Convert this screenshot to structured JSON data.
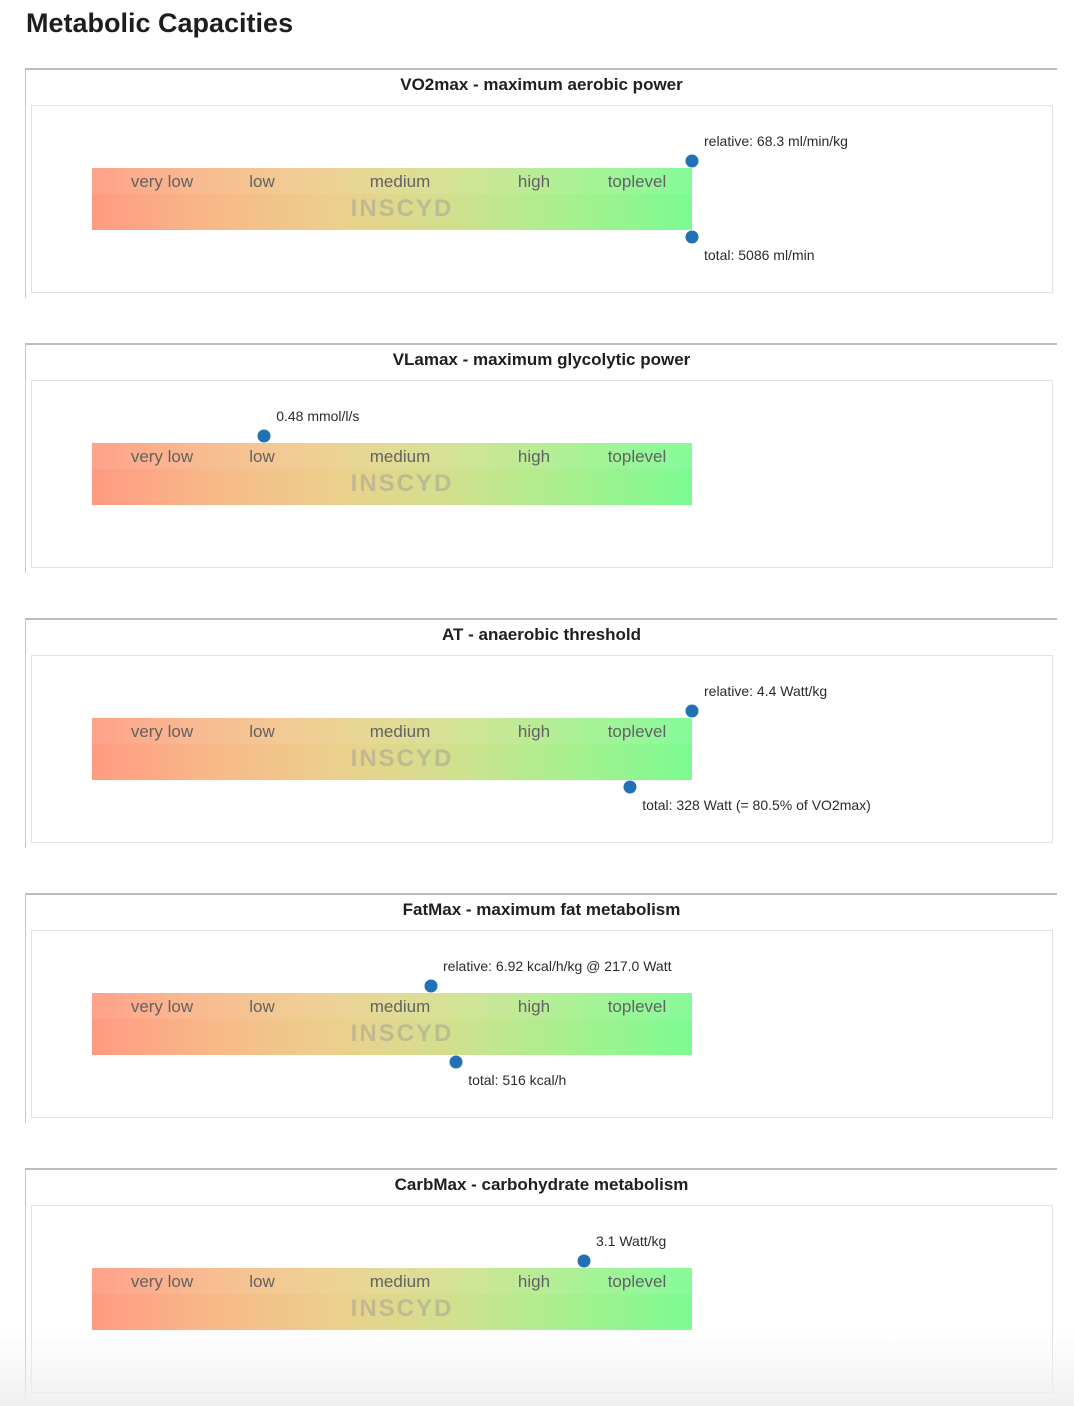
{
  "page_title": "Metabolic Capacities",
  "categories": [
    "very low",
    "low",
    "medium",
    "high",
    "toplevel"
  ],
  "watermark": "INSCYD",
  "colors": {
    "dot": "#2371b5",
    "bar_low": "#ff9a82",
    "bar_high": "#7cfb92"
  },
  "sections": [
    {
      "title": "VO2max - maximum aerobic power",
      "markers": [
        {
          "label": "relative: 68.3 ml/min/kg",
          "fraction": 1.0,
          "side": "top"
        },
        {
          "label": "total: 5086 ml/min",
          "fraction": 1.0,
          "side": "bottom"
        }
      ]
    },
    {
      "title": "VLamax - maximum glycolytic power",
      "markers": [
        {
          "label": "0.48 mmol/l/s",
          "fraction": 0.287,
          "side": "top"
        }
      ]
    },
    {
      "title": "AT - anaerobic threshold",
      "markers": [
        {
          "label": "relative: 4.4 Watt/kg",
          "fraction": 1.0,
          "side": "top"
        },
        {
          "label": "total: 328 Watt (= 80.5% of VO2max)",
          "fraction": 0.897,
          "side": "bottom"
        }
      ]
    },
    {
      "title": "FatMax - maximum fat metabolism",
      "markers": [
        {
          "label": "relative: 6.92 kcal/h/kg @ 217.0 Watt",
          "fraction": 0.565,
          "side": "top"
        },
        {
          "label": "total: 516 kcal/h",
          "fraction": 0.607,
          "side": "bottom"
        }
      ]
    },
    {
      "title": "CarbMax - carbohydrate metabolism",
      "markers": [
        {
          "label": "3.1 Watt/kg",
          "fraction": 0.82,
          "side": "top"
        }
      ]
    }
  ]
}
